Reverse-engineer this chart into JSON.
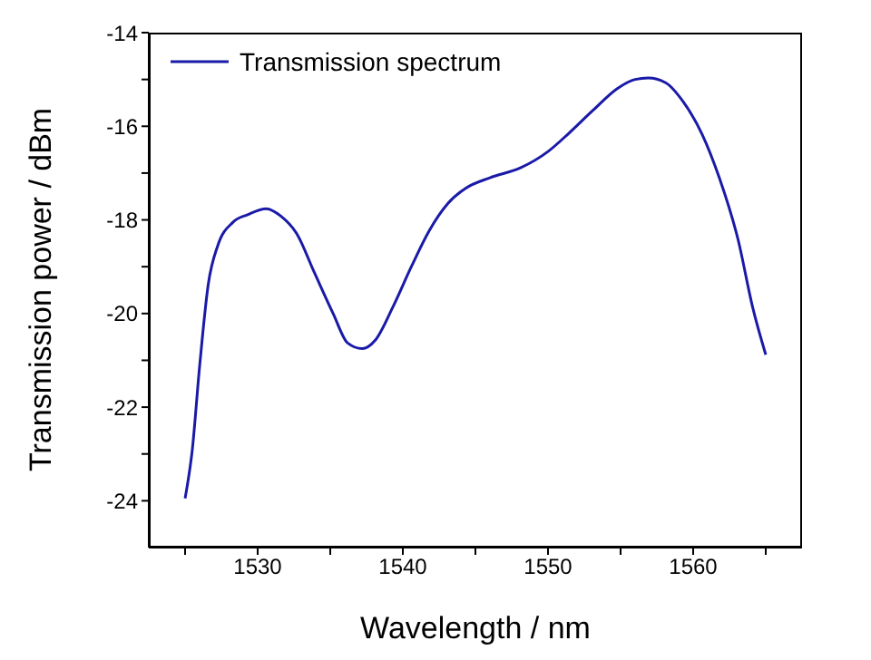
{
  "chart_data": {
    "type": "line",
    "xlabel": "Wavelength / nm",
    "ylabel": "Transmission power / dBm",
    "xlim": [
      1522.5,
      1567.5
    ],
    "ylim": [
      -25,
      -14
    ],
    "xticks": [
      {
        "value": 1525,
        "label": null
      },
      1530,
      {
        "value": 1535,
        "label": null
      },
      1540,
      {
        "value": 1545,
        "label": null
      },
      1550,
      {
        "value": 1555,
        "label": null
      },
      1560,
      {
        "value": 1565,
        "label": null
      }
    ],
    "yticks": [
      -24,
      {
        "value": -23,
        "label": null
      },
      -22,
      {
        "value": -21,
        "label": null
      },
      -20,
      {
        "value": -19,
        "label": null
      },
      -18,
      {
        "value": -17,
        "label": null
      },
      -16,
      {
        "value": -15,
        "label": null
      },
      -14
    ],
    "legend": "top left",
    "grid": false,
    "marker": "none",
    "line_style": "solid",
    "x": [
      1525,
      1525.5,
      1526,
      1526.6,
      1527.25,
      1528.3,
      1529.3,
      1530.6,
      1531.6,
      1532.7,
      1533.9,
      1535.2,
      1536.2,
      1537.2,
      1538.1,
      1539.3,
      1540.6,
      1541.8,
      1543.1,
      1544.3,
      1546,
      1548.1,
      1550,
      1551.4,
      1553.1,
      1554.75,
      1556,
      1556.9,
      1558.1,
      1559.3,
      1560.6,
      1561.8,
      1563.1,
      1564.1,
      1565
    ],
    "series": [
      {
        "name": "Transmission spectrum",
        "color": "#1a1aa8",
        "values": [
          -23.95,
          -22.9,
          -21.13,
          -19.37,
          -18.55,
          -18.05,
          -17.89,
          -17.76,
          -17.92,
          -18.3,
          -19.12,
          -20.0,
          -20.63,
          -20.75,
          -20.57,
          -19.87,
          -18.99,
          -18.24,
          -17.65,
          -17.33,
          -17.1,
          -16.89,
          -16.54,
          -16.16,
          -15.66,
          -15.2,
          -15.0,
          -14.97,
          -15.07,
          -15.47,
          -16.16,
          -17.1,
          -18.43,
          -19.87,
          -20.88
        ]
      }
    ]
  }
}
